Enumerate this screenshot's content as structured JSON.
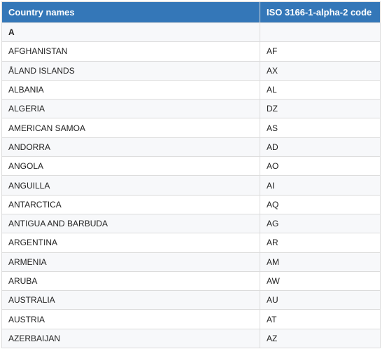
{
  "table": {
    "header": [
      "Country names",
      "ISO 3166-1-alpha-2 code"
    ],
    "section": "A",
    "rows": [
      [
        "AFGHANISTAN",
        "AF"
      ],
      [
        "ÅLAND ISLANDS",
        "AX"
      ],
      [
        "ALBANIA",
        "AL"
      ],
      [
        "ALGERIA",
        "DZ"
      ],
      [
        "AMERICAN SAMOA",
        "AS"
      ],
      [
        "ANDORRA",
        "AD"
      ],
      [
        "ANGOLA",
        "AO"
      ],
      [
        "ANGUILLA",
        "AI"
      ],
      [
        "ANTARCTICA",
        "AQ"
      ],
      [
        "ANTIGUA AND BARBUDA",
        "AG"
      ],
      [
        "ARGENTINA",
        "AR"
      ],
      [
        "ARMENIA",
        "AM"
      ],
      [
        "ARUBA",
        "AW"
      ],
      [
        "AUSTRALIA",
        "AU"
      ],
      [
        "AUSTRIA",
        "AT"
      ],
      [
        "AZERBAIJAN",
        "AZ"
      ]
    ]
  }
}
